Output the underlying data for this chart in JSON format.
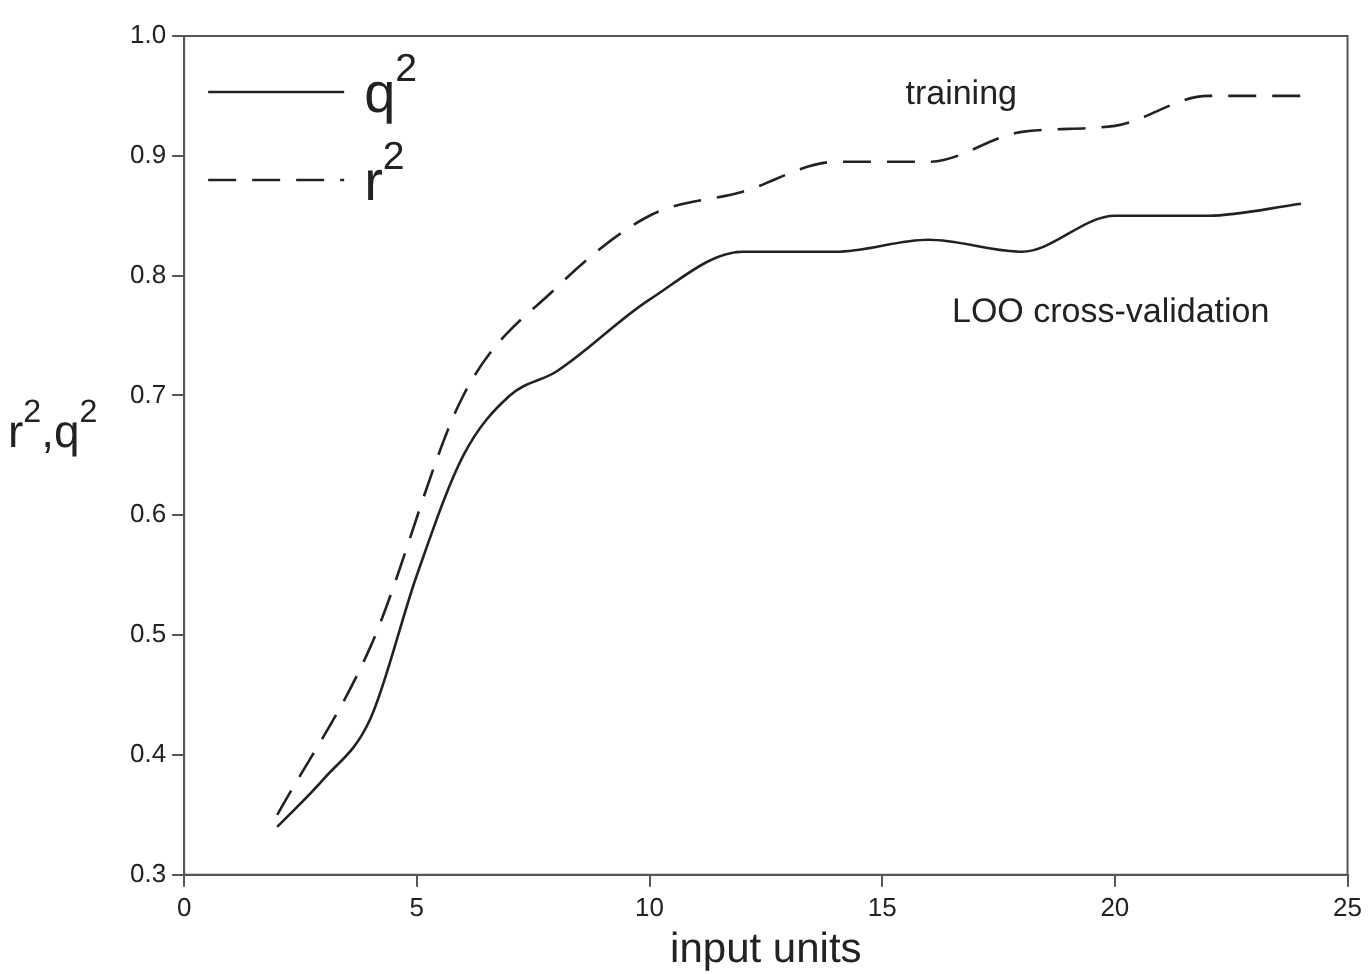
{
  "chart_data": {
    "type": "line",
    "xlabel": "input units",
    "ylabel": "r$^{2}$,q$^{2}$",
    "series": [
      {
        "name": "q$^{2}$",
        "color": "#222222",
        "line_style": "solid",
        "x": [
          2,
          3,
          4,
          5,
          6,
          7,
          8,
          10,
          12,
          14,
          16,
          18,
          20,
          22,
          24
        ],
        "values": [
          0.34,
          0.38,
          0.43,
          0.55,
          0.65,
          0.7,
          0.72,
          0.78,
          0.82,
          0.82,
          0.83,
          0.82,
          0.85,
          0.85,
          0.86
        ]
      },
      {
        "name": "r$^{2}$",
        "color": "#222222",
        "line_style": "dashed",
        "x": [
          2,
          4,
          6,
          8,
          10,
          12,
          14,
          16,
          18,
          20,
          22,
          24
        ],
        "values": [
          0.35,
          0.49,
          0.7,
          0.79,
          0.85,
          0.87,
          0.895,
          0.895,
          0.92,
          0.925,
          0.95,
          0.95
        ]
      }
    ],
    "annotations": [
      "training",
      "LOO cross-validation"
    ],
    "xlim": [
      0,
      25
    ],
    "xticks": [
      0,
      5,
      10,
      15,
      20,
      25
    ],
    "ylim": [
      0.3,
      1.0
    ],
    "yticks": [
      0.3,
      0.4,
      0.5,
      0.6,
      0.7,
      0.8,
      0.9,
      {
        "value": 1.0,
        "label": "1.0"
      }
    ],
    "grid": false,
    "legend": "top left",
    "marker": "none"
  }
}
